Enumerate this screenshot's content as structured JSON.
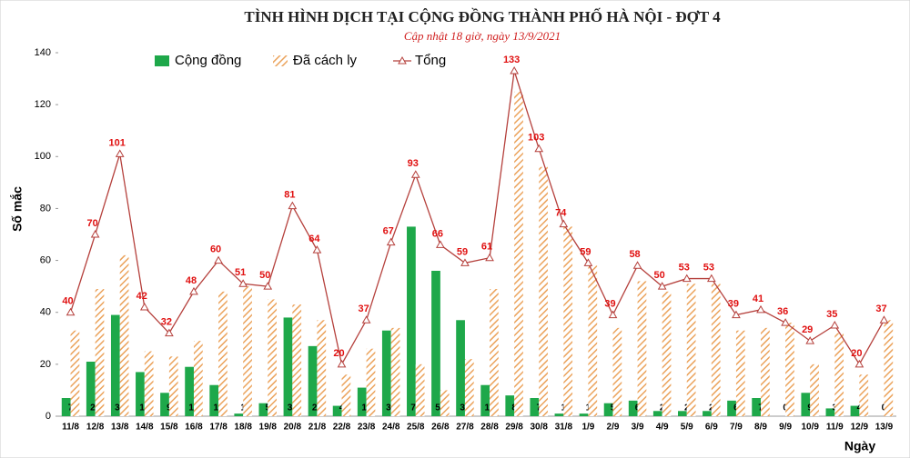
{
  "chart_data": {
    "type": "bar",
    "title": "TÌNH HÌNH DỊCH TẠI CỘNG ĐỒNG THÀNH PHỐ HÀ NỘI - ĐỢT 4",
    "subtitle": "Cập nhật 18 giờ, ngày 13/9/2021",
    "y_label": "Số mắc",
    "x_label": "Ngày",
    "categories": [
      "11/8",
      "12/8",
      "13/8",
      "14/8",
      "15/8",
      "16/8",
      "17/8",
      "18/8",
      "19/8",
      "20/8",
      "21/8",
      "22/8",
      "23/8",
      "24/8",
      "25/8",
      "26/8",
      "27/8",
      "28/8",
      "29/8",
      "30/8",
      "31/8",
      "1/9",
      "2/9",
      "3/9",
      "4/9",
      "5/9",
      "6/9",
      "7/9",
      "8/9",
      "9/9",
      "10/9",
      "11/9",
      "12/9",
      "13/9"
    ],
    "series": [
      {
        "name": "Cộng đồng",
        "type": "bar",
        "color": "#1ea84a",
        "values": [
          7,
          21,
          39,
          17,
          9,
          19,
          12,
          1,
          5,
          38,
          27,
          4,
          11,
          33,
          73,
          56,
          37,
          12,
          8,
          7,
          1,
          1,
          5,
          6,
          2,
          2,
          2,
          6,
          7,
          0,
          9,
          3,
          4,
          0
        ]
      },
      {
        "name": "Đã cách ly",
        "type": "bar",
        "color": "#eba35c",
        "hatch": true,
        "values": [
          33,
          49,
          62,
          25,
          23,
          29,
          48,
          50,
          45,
          43,
          37,
          16,
          26,
          34,
          20,
          10,
          22,
          49,
          125,
          96,
          73,
          58,
          34,
          52,
          48,
          51,
          51,
          33,
          34,
          36,
          20,
          32,
          16,
          37
        ]
      },
      {
        "name": "Tổng",
        "type": "line",
        "color": "#b5403c",
        "values": [
          40,
          70,
          101,
          42,
          32,
          48,
          60,
          51,
          50,
          81,
          64,
          20,
          37,
          67,
          93,
          66,
          59,
          61,
          133,
          103,
          74,
          59,
          39,
          58,
          50,
          53,
          53,
          39,
          41,
          36,
          29,
          35,
          20,
          37
        ]
      }
    ],
    "ylim": [
      0,
      140
    ],
    "yticks": [
      0,
      20,
      40,
      60,
      80,
      100,
      120,
      140
    ],
    "grid": false
  }
}
